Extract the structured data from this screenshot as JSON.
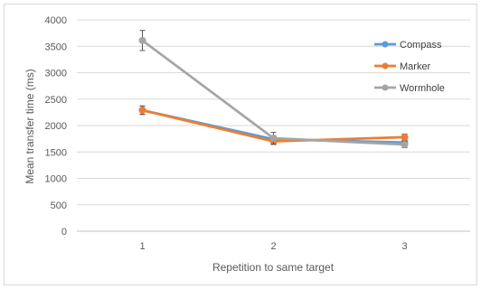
{
  "chart_data": {
    "type": "line",
    "title": "",
    "xlabel": "Repetition to same target",
    "ylabel": "Mean transfer time (ms)",
    "categories": [
      "1",
      "2",
      "3"
    ],
    "ylim": [
      0,
      4000
    ],
    "yticks": [
      0,
      500,
      1000,
      1500,
      2000,
      2500,
      3000,
      3500,
      4000
    ],
    "grid": true,
    "legend_position": "top-right",
    "series": [
      {
        "name": "Compass",
        "color": "#5b9bd5",
        "values": [
          2290,
          1740,
          1680
        ],
        "error": [
          80,
          70,
          60
        ]
      },
      {
        "name": "Marker",
        "color": "#ed7d31",
        "values": [
          2290,
          1700,
          1780
        ],
        "error": [
          80,
          60,
          60
        ]
      },
      {
        "name": "Wormhole",
        "color": "#a5a5a5",
        "values": [
          3610,
          1760,
          1640
        ],
        "error": [
          190,
          110,
          60
        ]
      }
    ]
  }
}
